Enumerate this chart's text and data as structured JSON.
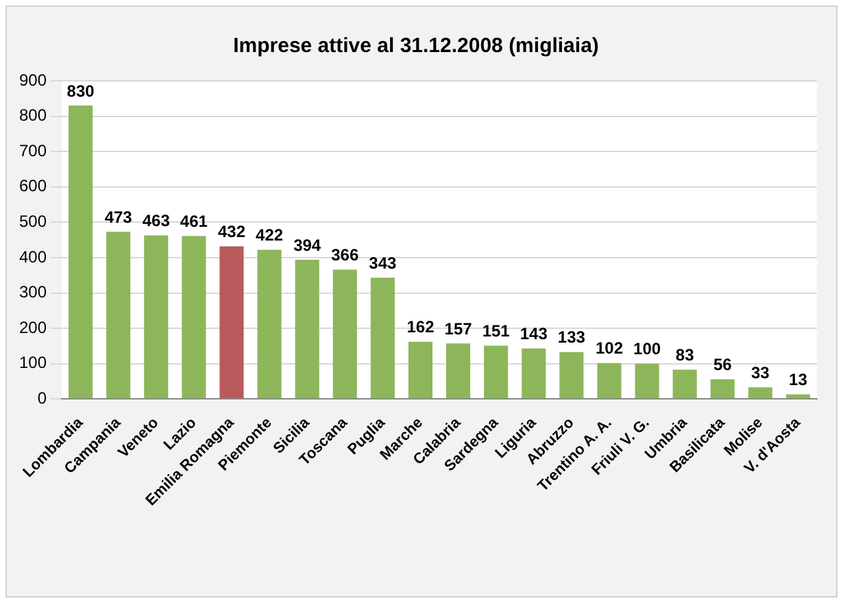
{
  "chart_data": {
    "type": "bar",
    "title": "Imprese attive al 31.12.2008 (migliaia)",
    "categories": [
      "Lombardia",
      "Campania",
      "Veneto",
      "Lazio",
      "Emilia Romagna",
      "Piemonte",
      "Sicilia",
      "Toscana",
      "Puglia",
      "Marche",
      "Calabria",
      "Sardegna",
      "Liguria",
      "Abruzzo",
      "Trentino A. A.",
      "Friuli V. G.",
      "Umbria",
      "Basilicata",
      "Molise",
      "V. d'Aosta"
    ],
    "values": [
      830,
      473,
      463,
      461,
      432,
      422,
      394,
      366,
      343,
      162,
      157,
      151,
      143,
      133,
      102,
      100,
      83,
      56,
      33,
      13
    ],
    "colors": [
      "#8db65a",
      "#8db65a",
      "#8db65a",
      "#8db65a",
      "#b85a5c",
      "#8db65a",
      "#8db65a",
      "#8db65a",
      "#8db65a",
      "#8db65a",
      "#8db65a",
      "#8db65a",
      "#8db65a",
      "#8db65a",
      "#8db65a",
      "#8db65a",
      "#8db65a",
      "#8db65a",
      "#8db65a",
      "#8db65a"
    ],
    "ylim": [
      0,
      900
    ],
    "yticks": [
      0,
      100,
      200,
      300,
      400,
      500,
      600,
      700,
      800,
      900
    ],
    "grid": "y",
    "data_labels": true,
    "legend": false
  }
}
